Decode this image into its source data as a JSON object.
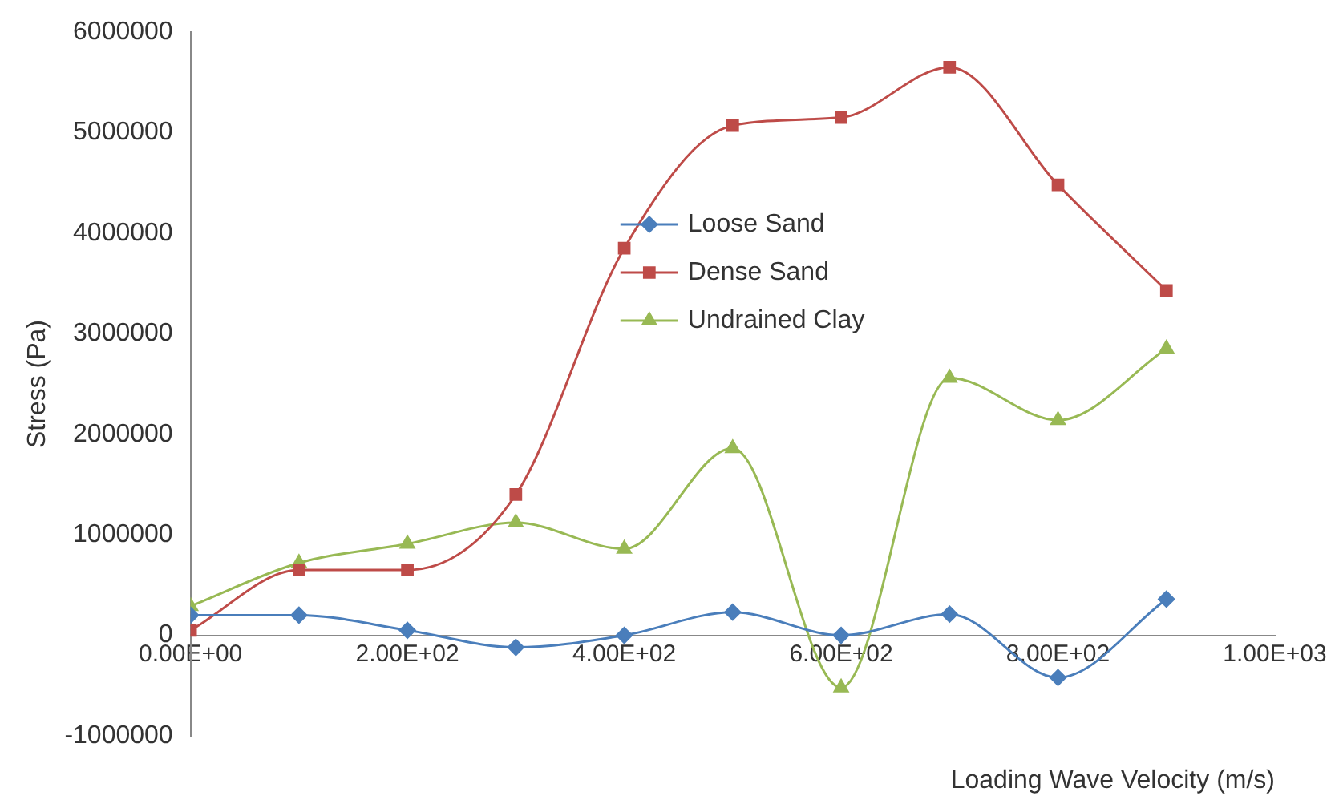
{
  "chart_data": {
    "type": "line",
    "xlabel": "Loading Wave Velocity (m/s)",
    "ylabel": "Stress (Pa)",
    "x": [
      0,
      100,
      200,
      300,
      400,
      500,
      600,
      700,
      800,
      900
    ],
    "series": [
      {
        "name": "Loose Sand",
        "color": "#4a7ebb",
        "marker": "diamond",
        "values": [
          200000,
          200000,
          50000,
          -120000,
          0,
          230000,
          0,
          210000,
          -420000,
          360000
        ]
      },
      {
        "name": "Dense Sand",
        "color": "#be4b48",
        "marker": "square",
        "values": [
          50000,
          650000,
          650000,
          1400000,
          3850000,
          5070000,
          5150000,
          5650000,
          4480000,
          3430000
        ]
      },
      {
        "name": "Undrained Clay",
        "color": "#98b954",
        "marker": "triangle",
        "values": [
          290000,
          720000,
          910000,
          1120000,
          860000,
          1860000,
          -520000,
          2560000,
          2140000,
          2850000
        ]
      }
    ],
    "xlim": [
      0,
      1000
    ],
    "xticks": [
      {
        "value": 0,
        "label": "0.00E+00"
      },
      {
        "value": 200,
        "label": "2.00E+02"
      },
      {
        "value": 400,
        "label": "4.00E+02"
      },
      {
        "value": 600,
        "label": "6.00E+02"
      },
      {
        "value": 800,
        "label": "8.00E+02"
      },
      {
        "value": 1000,
        "label": "1.00E+03"
      }
    ],
    "ylim": [
      -1000000,
      6000000
    ],
    "yticks": [
      -1000000,
      0,
      1000000,
      2000000,
      3000000,
      4000000,
      5000000,
      6000000
    ],
    "grid": false,
    "legend": "top",
    "line_style": "solid"
  }
}
